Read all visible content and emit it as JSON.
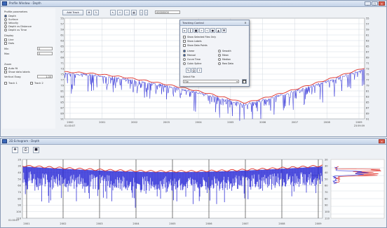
{
  "upper_window": {
    "title": "Profile Window - Depth",
    "buttons": {
      "minimize": "_",
      "maximize": "□",
      "close": "×"
    }
  },
  "sidebar": {
    "section_profile": "Profile parameters",
    "options": [
      {
        "label": "Depth",
        "checked": true
      },
      {
        "label": "Surface",
        "checked": false
      },
      {
        "label": "Velocity",
        "checked": false
      },
      {
        "label": "Depth vs Distance",
        "checked": false
      },
      {
        "label": "Depth vs Time",
        "checked": false
      }
    ],
    "section_display": "Display",
    "display_options": [
      {
        "label": "Line",
        "checked": false
      },
      {
        "label": "Dots",
        "checked": false
      }
    ],
    "fields": [
      {
        "label": "Min",
        "value": "0"
      },
      {
        "label": "Max",
        "value": "0"
      }
    ],
    "section_zoom": "Zoom",
    "zoom_options": [
      {
        "label": "Auto fit",
        "checked": false
      },
      {
        "label": "Show data labels",
        "checked": false
      }
    ],
    "vertical_exag_label": "Vertical Exag",
    "vertical_exag_value": "1.00",
    "bottom_checks": [
      {
        "label": "Track 1",
        "checked": false
      },
      {
        "label": "Track 2",
        "checked": false
      }
    ]
  },
  "toolbar": {
    "add_track_label": "Add Track",
    "zoom_field_value": "00000000",
    "icons": [
      "pan-icon",
      "pencil-icon",
      "cursor-icon",
      "zoom-in-icon",
      "zoom-out-icon",
      "grid-icon"
    ]
  },
  "upper_chart": {
    "y_ticks": [
      "55",
      "57",
      "59",
      "61",
      "63",
      "65",
      "67",
      "69",
      "71",
      "73",
      "75",
      "77",
      "79",
      "81",
      "83",
      "85",
      "87",
      "89",
      "91"
    ],
    "x_ticks": [
      "2000",
      "2001",
      "2002",
      "2003",
      "2004",
      "2005",
      "2006",
      "2007",
      "2008",
      "2009"
    ],
    "x_left_label": "01:00:07",
    "x_right_label": "23:59:59"
  },
  "dialog": {
    "title": "Tracking Control",
    "close": "×",
    "icons": [
      "play-icon",
      "pause-icon",
      "stop-icon",
      "forward-icon",
      "back-icon",
      "record-icon",
      "up-icon",
      "down-icon"
    ],
    "rows": [
      {
        "label": "Show Selected Files Only",
        "checked": false
      },
      {
        "label": "Show Labels",
        "checked": false
      },
      {
        "label": "Show Data Points",
        "checked": false
      }
    ],
    "radio_left": [
      {
        "label": "Linear",
        "checked": true
      },
      {
        "label": "Manual",
        "checked": true
      },
      {
        "label": "Curve Time",
        "checked": false
      },
      {
        "label": "Cubic Spline",
        "checked": false
      }
    ],
    "radio_right": [
      {
        "label": "Smooth",
        "checked": false
      },
      {
        "label": "Mean",
        "checked": false
      },
      {
        "label": "Median",
        "checked": false
      },
      {
        "label": "Raw Data",
        "checked": false
      }
    ],
    "dropdown_label": "Select File",
    "dropdown_value": "File"
  },
  "lower_window": {
    "title": "2D Echogram - Depth",
    "y_ticks": [
      "20",
      "30",
      "40",
      "50",
      "60",
      "70",
      "80",
      "90",
      "100",
      "110"
    ],
    "x_ticks": [
      "2001",
      "2002",
      "2003",
      "2004",
      "2005",
      "2006",
      "2007",
      "2008",
      "2009"
    ],
    "x_left_label": "01:00:07",
    "x_right_label": "23:59:59"
  },
  "colors": {
    "depth_series": "#2a2ad6",
    "trend_line": "#e0322b",
    "grid": "#c9d0da",
    "plot_bg": "#ffffff",
    "window_bg": "#eef1f5"
  }
}
